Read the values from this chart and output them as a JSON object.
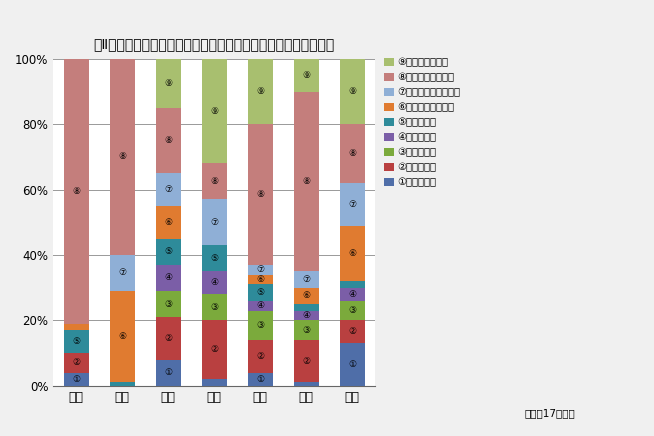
{
  "title": "図Ⅱ－２　中学校特殊学級における交流及び共同学習の実施状況",
  "categories": [
    "弱視",
    "難聴",
    "知的",
    "肢体",
    "病弱",
    "言語",
    "情緒"
  ],
  "legend_labels": [
    "１時間程度",
    "２時間程度",
    "３時間程度",
    "４時間程度",
    "５時間程度",
    "５から８時間まで",
    "８から１２時間まで",
    "１２時間を超えて",
    "実施していない"
  ],
  "series_colors": [
    "#4F6EA8",
    "#B94040",
    "#7BAA3C",
    "#7B5EA7",
    "#2E8B9A",
    "#E07B30",
    "#8FAFD6",
    "#C47E7C",
    "#A8BF6F"
  ],
  "data": {
    "弱視": [
      4,
      6,
      0,
      0,
      7,
      2,
      0,
      81,
      0
    ],
    "難聴": [
      0,
      0,
      0,
      0,
      1,
      28,
      11,
      60,
      0
    ],
    "知的": [
      8,
      13,
      8,
      8,
      8,
      10,
      10,
      20,
      15
    ],
    "肢体": [
      2,
      18,
      8,
      7,
      8,
      0,
      14,
      11,
      32
    ],
    "病弱": [
      4,
      10,
      9,
      3,
      5,
      3,
      3,
      43,
      20
    ],
    "言語": [
      1,
      13,
      6,
      3,
      2,
      5,
      5,
      55,
      10
    ],
    "情緒": [
      13,
      7,
      6,
      4,
      2,
      17,
      13,
      18,
      20
    ]
  },
  "note": "（平成17年度）",
  "ylim": [
    0,
    100
  ],
  "yticks": [
    0,
    20,
    40,
    60,
    80,
    100
  ],
  "ytick_labels": [
    "0%",
    "20%",
    "40%",
    "60%",
    "80%",
    "100%"
  ],
  "bg_color": "#F0F0F0",
  "plot_bg_color": "#FFFFFF",
  "grid_color": "#999999",
  "bar_width": 0.55
}
